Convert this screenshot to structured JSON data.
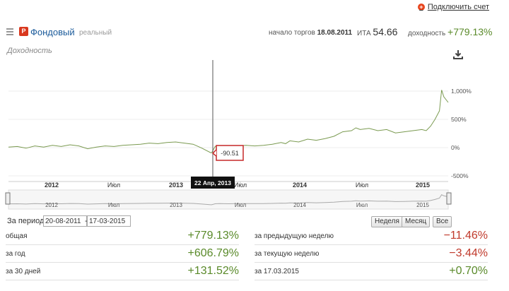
{
  "top": {
    "connect_label": "Подключить счет"
  },
  "account": {
    "badge": "Р",
    "name": "Фондовый",
    "type": "реальный",
    "start_label": "начало торгов",
    "start_date": "18.08.2011",
    "ita_label": "ИТА",
    "ita_value": "54.66",
    "yield_label": "доходность",
    "yield_value": "+779.13%"
  },
  "chart": {
    "title": "Доходность"
  },
  "chart_data": {
    "type": "line",
    "x_ticks": [
      "2012",
      "Июл",
      "2013",
      "Июл",
      "2014",
      "Июл",
      "2015"
    ],
    "y_ticks": [
      "1,000%",
      "500%",
      "0%",
      "-500%"
    ],
    "ylim": [
      -500,
      1000
    ],
    "cursor_date": "22 Апр, 2013",
    "cursor_value": "-90.51",
    "navigator_ticks": [
      "2012",
      "Июл",
      "2013",
      "Июл",
      "2014",
      "Июл",
      "2015"
    ],
    "series_color": "#7a9a50",
    "series": [
      {
        "x": [
          0,
          0.02,
          0.04,
          0.06,
          0.08,
          0.1,
          0.12,
          0.14,
          0.16,
          0.18,
          0.2,
          0.22,
          0.24,
          0.26,
          0.28,
          0.3,
          0.32,
          0.34,
          0.36,
          0.38,
          0.4,
          0.42,
          0.44,
          0.46,
          0.462,
          0.47,
          0.48,
          0.5,
          0.52,
          0.54,
          0.56,
          0.58,
          0.6,
          0.62,
          0.63,
          0.64,
          0.66,
          0.68,
          0.7,
          0.72,
          0.74,
          0.76,
          0.78,
          0.79,
          0.8,
          0.82,
          0.84,
          0.86,
          0.88,
          0.9,
          0.92,
          0.94,
          0.95,
          0.96,
          0.97,
          0.98,
          0.985,
          0.99,
          1.0
        ],
        "values": [
          10,
          20,
          -10,
          30,
          10,
          40,
          20,
          50,
          30,
          -20,
          10,
          30,
          20,
          40,
          50,
          60,
          80,
          70,
          90,
          100,
          80,
          60,
          -10,
          -90,
          -90,
          20,
          30,
          20,
          30,
          40,
          30,
          40,
          60,
          90,
          70,
          120,
          100,
          150,
          130,
          160,
          200,
          280,
          300,
          350,
          320,
          340,
          300,
          320,
          260,
          280,
          300,
          320,
          300,
          380,
          500,
          650,
          1020,
          900,
          800
        ]
      }
    ]
  },
  "period": {
    "label": "За период:",
    "from": "20-08-2011",
    "sep": "-",
    "to": "17-03-2015",
    "buttons": [
      "Неделя",
      "Месяц",
      "Все"
    ]
  },
  "stats_left": [
    {
      "label": "общая",
      "value": "+779.13%"
    },
    {
      "label": "за год",
      "value": "+606.79%"
    },
    {
      "label": "за 30 дней",
      "value": "+131.52%"
    }
  ],
  "stats_right": [
    {
      "label": "за предыдущую неделю",
      "value": "−11.46%"
    },
    {
      "label": "за текущую неделю",
      "value": "−3.44%"
    },
    {
      "label": "за 17.03.2015",
      "value": "+0.70%"
    }
  ]
}
